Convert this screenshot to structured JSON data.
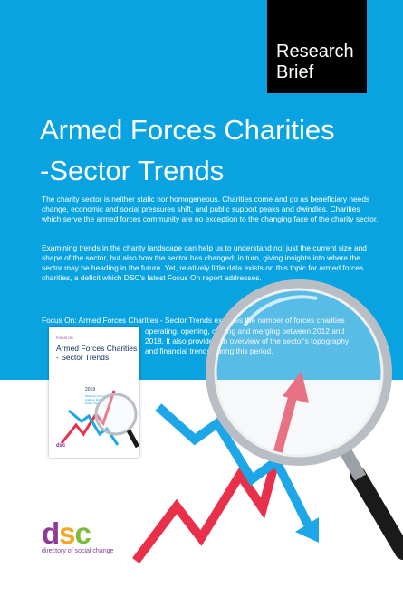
{
  "badge": {
    "line1": "Research",
    "line2": "Brief"
  },
  "title": {
    "line1": "Armed Forces Charities",
    "line2": "-Sector Trends"
  },
  "paragraphs": {
    "p1": "The charity sector is neither static nor homogeneous. Charities come and go as beneficiary needs change, economic and social pressures shift, and public support peaks and dwindles. Charities which serve the armed forces community are no exception to the changing face of the charity sector.",
    "p2": "Examining trends in the charity landscape can help us to understand not just the current size and shape of the sector, but also how the sector has changed; in turn, giving insights into where the sector may be heading in the future. Yet, relatively little data exists on this topic for armed forces charities, a deficit which DSC's latest Focus On report addresses.",
    "p3_line1": "Focus On: Armed Forces Charities - Sector Trends explores the number of forces charities",
    "p3_line2": "operating, opening, closing and merging between 2012 and",
    "p3_line3": "2018. It also provides an overview of the sector's topography",
    "p3_line4": "and financial trends during this period."
  },
  "cover": {
    "kicker": "FOCUS ON",
    "title": "Armed Forces Charities - Sector Trends",
    "year": "2019",
    "authors": [
      "Rhiannon Doherty",
      "Anthony Robson",
      "Stuart Cole"
    ],
    "logo": "dsc"
  },
  "logo": {
    "d": "d",
    "s": "s",
    "c": "c",
    "tagline": "directory of social change"
  },
  "colors": {
    "background_blue": "#0aa3e2",
    "badge_black": "#000000",
    "arrow_red": "#e8304a",
    "arrow_blue": "#0aa3e2",
    "dsc_purple": "#8e3b96",
    "dsc_orange": "#f5a623",
    "dsc_green": "#7dbb3c"
  },
  "icons": {
    "magnifier": "magnifying-glass-icon",
    "arrows": "trend-arrow-icon"
  }
}
